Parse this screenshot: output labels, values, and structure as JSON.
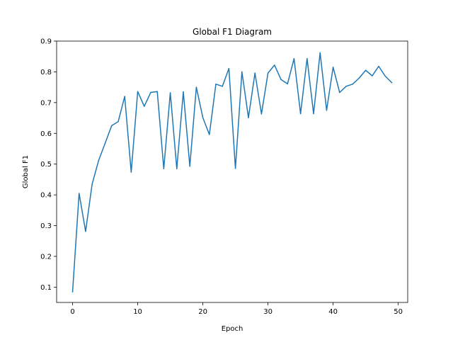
{
  "chart_data": {
    "type": "line",
    "title": "Global F1 Diagram",
    "xlabel": "Epoch",
    "ylabel": "Global F1",
    "xlim": [
      -2.45,
      51.45
    ],
    "ylim": [
      0.0502,
      0.9
    ],
    "xticks": [
      0,
      10,
      20,
      30,
      40,
      50
    ],
    "yticks": [
      0.1,
      0.2,
      0.3,
      0.4,
      0.5,
      0.6,
      0.7,
      0.8,
      0.9
    ],
    "grid": false,
    "legend": "none",
    "series": [
      {
        "color": "#1f77b4",
        "x": [
          0,
          1,
          2,
          3,
          4,
          5,
          6,
          7,
          8,
          9,
          10,
          11,
          12,
          13,
          14,
          15,
          16,
          17,
          18,
          19,
          20,
          21,
          22,
          23,
          24,
          25,
          26,
          27,
          28,
          29,
          30,
          31,
          32,
          33,
          34,
          35,
          36,
          37,
          38,
          39,
          40,
          41,
          42,
          43,
          44,
          45,
          46,
          47,
          48,
          49
        ],
        "values": [
          0.085,
          0.405,
          0.281,
          0.435,
          0.512,
          0.568,
          0.625,
          0.638,
          0.72,
          0.474,
          0.736,
          0.688,
          0.733,
          0.736,
          0.485,
          0.732,
          0.485,
          0.735,
          0.493,
          0.75,
          0.651,
          0.596,
          0.76,
          0.753,
          0.811,
          0.486,
          0.8,
          0.651,
          0.796,
          0.663,
          0.796,
          0.822,
          0.775,
          0.761,
          0.843,
          0.664,
          0.843,
          0.664,
          0.862,
          0.675,
          0.815,
          0.733,
          0.753,
          0.76,
          0.78,
          0.805,
          0.787,
          0.818,
          0.786,
          0.765
        ]
      }
    ]
  }
}
